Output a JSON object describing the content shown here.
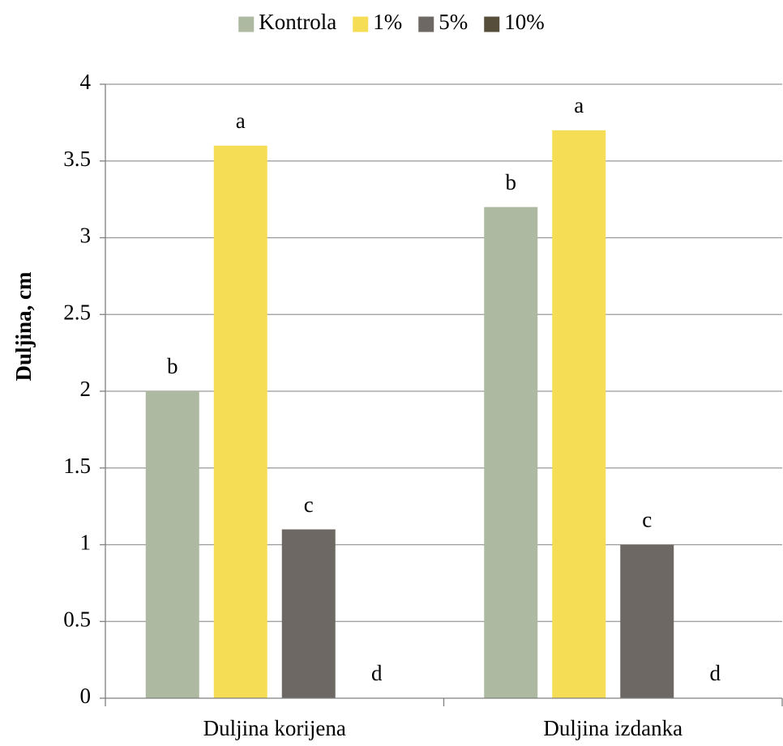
{
  "chart_data": {
    "type": "bar",
    "title": "",
    "xlabel": "",
    "ylabel": "Duljina, cm",
    "categories": [
      "Duljina korijena",
      "Duljina izdanka"
    ],
    "series": [
      {
        "name": "Kontrola",
        "values": [
          2.0,
          3.2
        ],
        "labels": [
          "b",
          "b"
        ],
        "color": "#adb9a0"
      },
      {
        "name": "1%",
        "values": [
          3.6,
          3.7
        ],
        "labels": [
          "a",
          "a"
        ],
        "color": "#f5dd55"
      },
      {
        "name": "5%",
        "values": [
          1.1,
          1.0
        ],
        "labels": [
          "c",
          "c"
        ],
        "color": "#6d6863"
      },
      {
        "name": "10%",
        "values": [
          0,
          0
        ],
        "labels": [
          "d",
          "d"
        ],
        "color": "#564d3a"
      }
    ],
    "ylim": [
      0,
      4
    ],
    "yticks": [
      "0",
      "0.5",
      "1",
      "1.5",
      "2",
      "2.5",
      "3",
      "3.5",
      "4"
    ],
    "grid": true,
    "legend_position": "top-center",
    "colors": {
      "grid": "#999999",
      "axis": "#808080",
      "text": "#000000"
    }
  }
}
